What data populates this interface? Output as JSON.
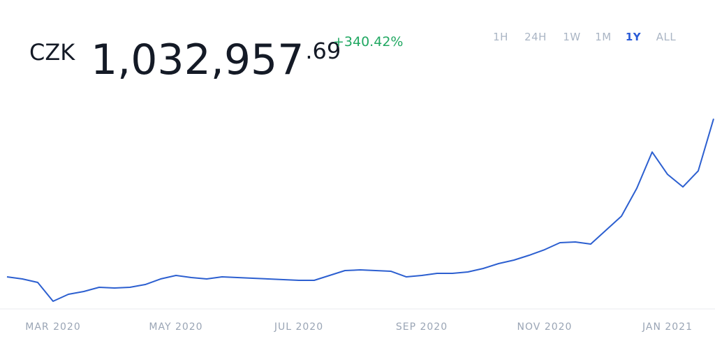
{
  "header": {
    "currency": "CZK",
    "price_main": "1,032,957",
    "price_cents": ".69",
    "change": "+340.42%",
    "ranges": [
      "1H",
      "24H",
      "1W",
      "1M",
      "1Y",
      "ALL"
    ],
    "active_index": 4
  },
  "chart_data": {
    "type": "line",
    "color": "#2c5fd0",
    "categories": [
      null,
      null,
      null,
      "MAR 2020",
      null,
      null,
      null,
      null,
      null,
      null,
      null,
      "MAY 2020",
      null,
      null,
      null,
      null,
      null,
      null,
      null,
      "JUL 2020",
      null,
      null,
      null,
      null,
      null,
      null,
      null,
      "SEP 2020",
      null,
      null,
      null,
      null,
      null,
      null,
      null,
      "NOV 2020",
      null,
      null,
      null,
      null,
      null,
      null,
      null,
      "JAN 2021",
      null,
      null,
      null
    ],
    "series": [
      {
        "name": "CZK",
        "color": "#2c5fd0",
        "values": [
          228254,
          217607,
          199862,
          104039,
          139529,
          153725,
          175019,
          171470,
          175019,
          189215,
          217607,
          235352,
          224705,
          217607,
          228254,
          224705,
          221156,
          217607,
          214058,
          210509,
          210509,
          235352,
          260195,
          263744,
          260195,
          256646,
          228254,
          235352,
          245999,
          245999,
          253097,
          270842,
          295685,
          313430,
          338273,
          366665,
          402155,
          405704,
          395057,
          466037,
          537017,
          678977,
          863525,
          749957,
          686075,
          767702,
          1032957.69
        ]
      }
    ],
    "ylim": [
      65000,
      1105000
    ]
  }
}
